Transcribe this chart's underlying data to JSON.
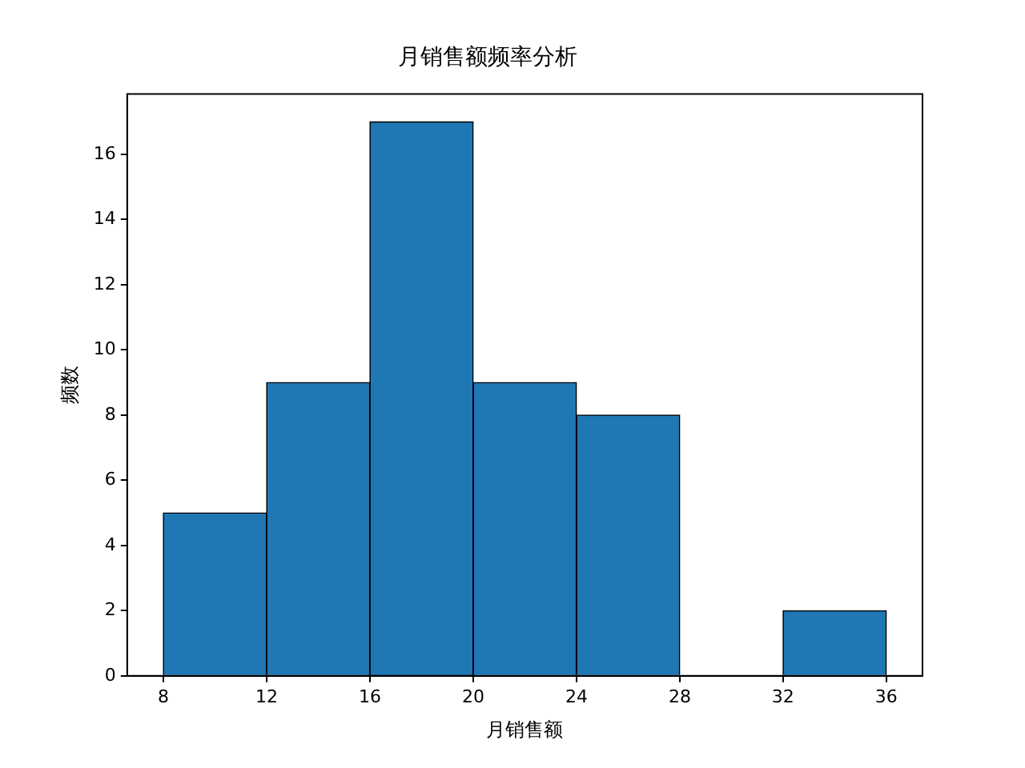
{
  "chart_data": {
    "type": "histogram",
    "title": "月销售额频率分析",
    "xlabel": "月销售额",
    "ylabel": "频数",
    "bins": [
      8,
      12,
      16,
      20,
      24,
      28,
      32,
      36
    ],
    "values": [
      5,
      9,
      17,
      9,
      8,
      0,
      2
    ],
    "color": "#1f77b4",
    "xlim": [
      6.6,
      37.4
    ],
    "xticks": [
      8,
      12,
      16,
      20,
      24,
      28,
      32,
      36
    ],
    "ylim": [
      0,
      17.85
    ],
    "yticks": [
      0,
      2,
      4,
      6,
      8,
      10,
      12,
      14,
      16
    ],
    "grid": false,
    "legend": false
  }
}
